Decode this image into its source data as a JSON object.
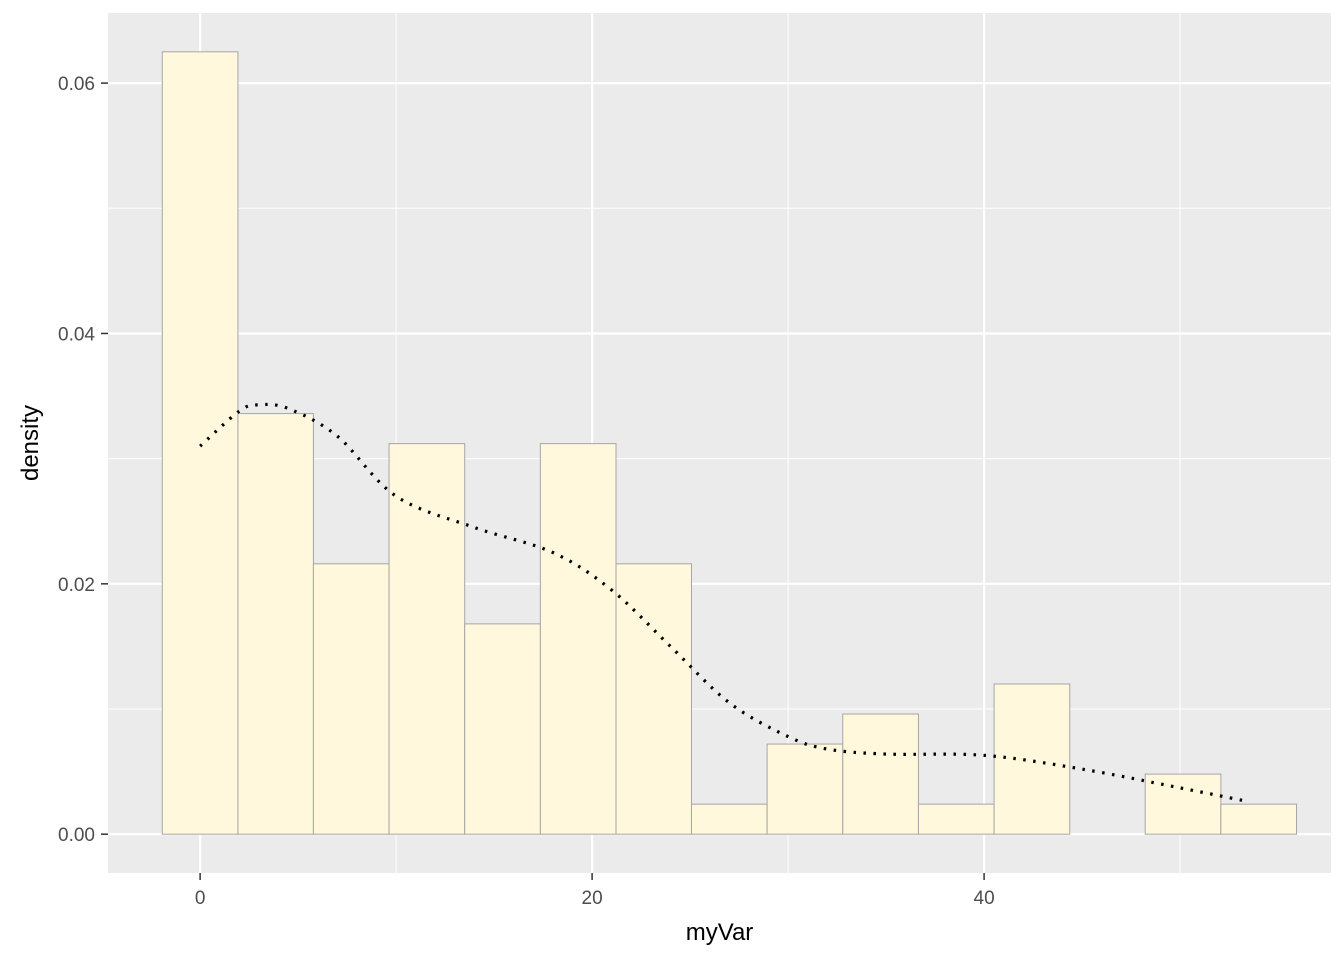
{
  "chart_data": {
    "type": "histogram",
    "xlabel": "myVar",
    "ylabel": "density",
    "xlim": [
      -4.7,
      57.7
    ],
    "ylim": [
      -0.0031,
      0.0656
    ],
    "x_ticks": [
      0,
      20,
      40
    ],
    "x_tick_labels": [
      "0",
      "20",
      "40"
    ],
    "y_ticks": [
      0.0,
      0.02,
      0.04,
      0.06
    ],
    "y_tick_labels": [
      "0.00",
      "0.02",
      "0.04",
      "0.06"
    ],
    "grid": true,
    "bins": [
      {
        "x0": -1.93,
        "x1": 1.93,
        "density": 0.0625
      },
      {
        "x0": 1.93,
        "x1": 5.78,
        "density": 0.0336
      },
      {
        "x0": 5.78,
        "x1": 9.64,
        "density": 0.0216
      },
      {
        "x0": 9.64,
        "x1": 13.5,
        "density": 0.0312
      },
      {
        "x0": 13.5,
        "x1": 17.36,
        "density": 0.0168
      },
      {
        "x0": 17.36,
        "x1": 21.22,
        "density": 0.0312
      },
      {
        "x0": 21.22,
        "x1": 25.07,
        "density": 0.0216
      },
      {
        "x0": 25.07,
        "x1": 28.93,
        "density": 0.0024
      },
      {
        "x0": 28.93,
        "x1": 32.79,
        "density": 0.0072
      },
      {
        "x0": 32.79,
        "x1": 36.65,
        "density": 0.0096
      },
      {
        "x0": 36.65,
        "x1": 40.51,
        "density": 0.0024
      },
      {
        "x0": 40.51,
        "x1": 44.37,
        "density": 0.012
      },
      {
        "x0": 44.37,
        "x1": 48.22,
        "density": 0.0
      },
      {
        "x0": 48.22,
        "x1": 52.08,
        "density": 0.0048
      },
      {
        "x0": 52.08,
        "x1": 55.94,
        "density": 0.0024
      }
    ],
    "density_curve": {
      "line_style": "dotted",
      "x": [
        0,
        2,
        3,
        4.5,
        7,
        10,
        14,
        18,
        21,
        24,
        27,
        30,
        32,
        35,
        40,
        45,
        50,
        53.5
      ],
      "y": [
        0.031,
        0.0338,
        0.0343,
        0.034,
        0.0318,
        0.027,
        0.0245,
        0.0225,
        0.0195,
        0.015,
        0.0105,
        0.0078,
        0.0068,
        0.0064,
        0.0063,
        0.0052,
        0.0037,
        0.0026
      ]
    },
    "colors": {
      "panel_background": "#ebebeb",
      "grid": "#ffffff",
      "bar_fill": "#fff8dc",
      "bar_outline": "#a6a6a6",
      "curve": "#000000"
    }
  }
}
